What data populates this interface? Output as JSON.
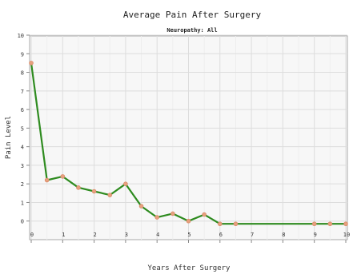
{
  "chart_data": {
    "type": "line",
    "title": "Average Pain After Surgery",
    "subtitle": "Neuropathy: All",
    "xlabel": "Years After Surgery",
    "ylabel": "Pain Level",
    "xlim": [
      0,
      10
    ],
    "ylim": [
      -1,
      10
    ],
    "x_ticks": [
      "0",
      "1",
      "2",
      "3",
      "4",
      "5",
      "6",
      "7",
      "8",
      "9",
      "10"
    ],
    "y_ticks": [
      "0",
      "1",
      "2",
      "3",
      "4",
      "5",
      "6",
      "7",
      "8",
      "9",
      "10"
    ],
    "grid": true,
    "series": [
      {
        "x": [
          0,
          0.5,
          1,
          1.5,
          2,
          2.5,
          3,
          3.5,
          4,
          4.5,
          5,
          5.5,
          6,
          6.5,
          9,
          9.5,
          10
        ],
        "y": [
          8.5,
          2.2,
          2.4,
          1.8,
          1.6,
          1.4,
          2.0,
          0.8,
          0.2,
          0.4,
          0.0,
          0.35,
          -0.15,
          -0.15,
          -0.15,
          -0.15,
          -0.15
        ],
        "line_color": "#2e8b1f",
        "marker_color": "#e7a07e"
      }
    ]
  }
}
